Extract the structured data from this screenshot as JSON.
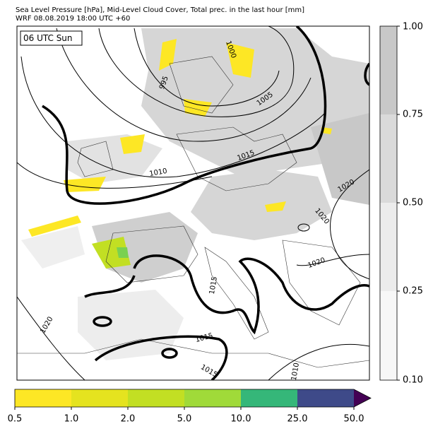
{
  "header": {
    "title": "Sea Level Pressure [hPa], Mid-Level Cloud Cover, Total prec. in the last hour [mm]",
    "subtitle": "WRF 08.08.2019 18:00 UTC +60"
  },
  "map": {
    "time_label": "06 UTC Sun",
    "contour_labels": [
      "995",
      "1000",
      "1005",
      "1010",
      "1015",
      "1020",
      "1020",
      "1020",
      "1015",
      "1020",
      "1015",
      "1015",
      "1010"
    ]
  },
  "cloud_colorbar": {
    "ticks": [
      "1.00",
      "0.75",
      "0.50",
      "0.25",
      "0.10"
    ]
  },
  "precip_colorbar": {
    "ticks": [
      "0.5",
      "1.0",
      "2.0",
      "5.0",
      "10.0",
      "25.0",
      "50.0"
    ]
  }
}
